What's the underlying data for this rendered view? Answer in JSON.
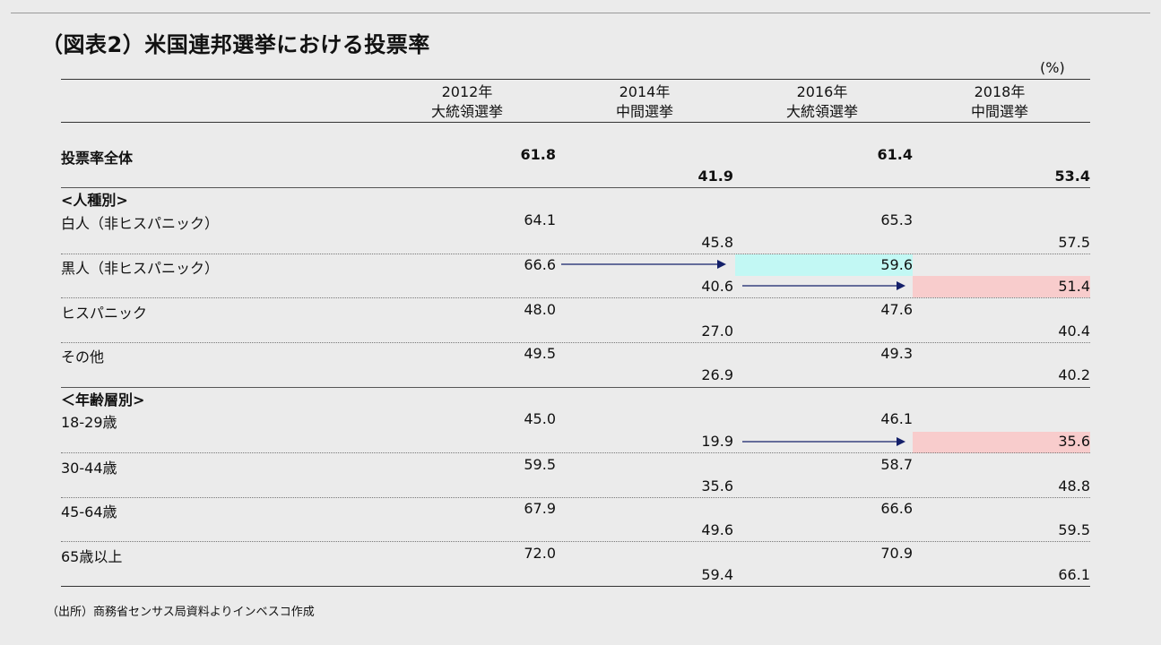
{
  "title": "（図表2）米国連邦選挙における投票率",
  "unit": "(%)",
  "columns": [
    {
      "year": "2012年",
      "type": "大統領選挙"
    },
    {
      "year": "2014年",
      "type": "中間選挙"
    },
    {
      "year": "2016年",
      "type": "大統領選挙"
    },
    {
      "year": "2018年",
      "type": "中間選挙"
    }
  ],
  "overall": {
    "label": "投票率全体",
    "values": [
      "61.8",
      "41.9",
      "61.4",
      "53.4"
    ]
  },
  "sections": {
    "race": "<人種別>",
    "age": "＜年齢層別>"
  },
  "rows": [
    {
      "label": "白人（非ヒスパニック）",
      "values": [
        "64.1",
        "45.8",
        "65.3",
        "57.5"
      ]
    },
    {
      "label": "黒人（非ヒスパニック）",
      "values": [
        "66.6",
        "40.6",
        "59.6",
        "51.4"
      ]
    },
    {
      "label": "ヒスパニック",
      "values": [
        "48.0",
        "27.0",
        "47.6",
        "40.4"
      ]
    },
    {
      "label": "その他",
      "values": [
        "49.5",
        "26.9",
        "49.3",
        "40.2"
      ]
    },
    {
      "label": "18-29歳",
      "values": [
        "45.0",
        "19.9",
        "46.1",
        "35.6"
      ]
    },
    {
      "label": "30-44歳",
      "values": [
        "59.5",
        "35.6",
        "58.7",
        "48.8"
      ]
    },
    {
      "label": "45-64歳",
      "values": [
        "67.9",
        "49.6",
        "66.6",
        "59.5"
      ]
    },
    {
      "label": "65歳以上",
      "values": [
        "72.0",
        "59.4",
        "70.9",
        "66.1"
      ]
    }
  ],
  "highlight_colors": {
    "cyan": "#c2f8f4",
    "pink": "#f8cccc"
  },
  "arrow_color": "#14206a",
  "source": "（出所）商務省センサス局資料よりインベスコ作成"
}
